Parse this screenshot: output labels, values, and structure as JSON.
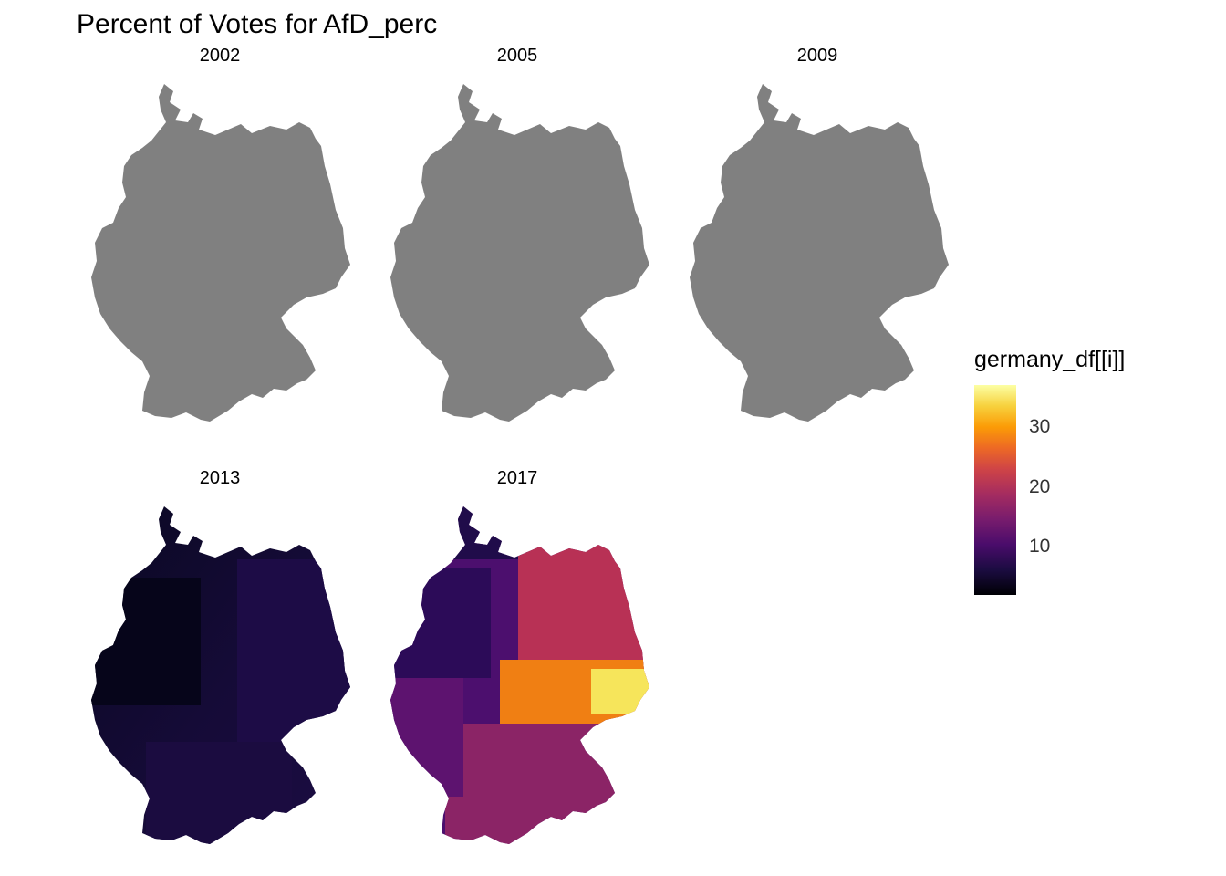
{
  "title": "Percent of Votes for AfD_perc",
  "panels": [
    {
      "year": "2002",
      "has_data": false
    },
    {
      "year": "2005",
      "has_data": false
    },
    {
      "year": "2009",
      "has_data": false
    },
    {
      "year": "2013",
      "has_data": true
    },
    {
      "year": "2017",
      "has_data": true
    }
  ],
  "legend": {
    "title": "germany_df[[i]]",
    "ticks": [
      "10",
      "20",
      "30"
    ],
    "tick_values": [
      10,
      20,
      30
    ],
    "range": [
      2,
      37
    ],
    "colormap": "inferno"
  },
  "colors": {
    "missing": "#808080",
    "low": "#000004",
    "high": "#fcffa4"
  }
}
